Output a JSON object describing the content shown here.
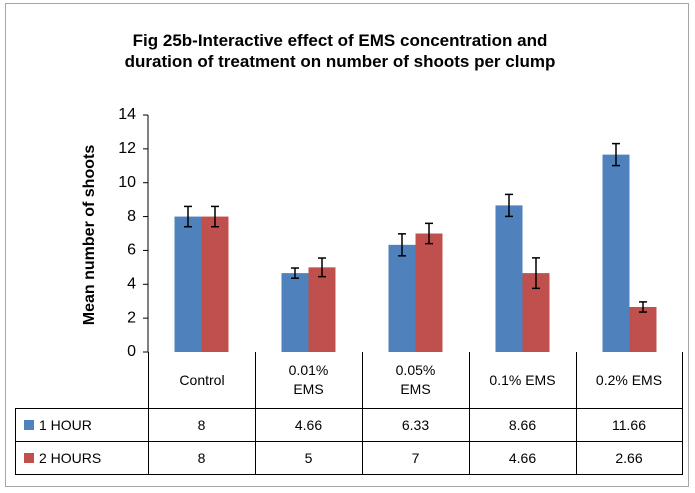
{
  "chart_data": {
    "type": "bar",
    "title": "Fig 25b-Interactive effect of EMS concentration and duration of treatment on number of shoots per clump",
    "ylabel": "Mean number of shoots",
    "categories": [
      "Control",
      "0.01% EMS",
      "0.05% EMS",
      "0.1% EMS",
      "0.2% EMS"
    ],
    "series": [
      {
        "name": "1 HOUR",
        "color": "#4f81bd",
        "values": [
          8,
          4.66,
          6.33,
          8.66,
          11.66
        ],
        "errors": [
          0.6,
          0.3,
          0.65,
          0.65,
          0.65
        ]
      },
      {
        "name": "2 HOURS",
        "color": "#c0504d",
        "values": [
          8,
          5,
          7,
          4.66,
          2.66
        ],
        "errors": [
          0.6,
          0.55,
          0.6,
          0.9,
          0.3
        ]
      }
    ],
    "ylim": [
      0,
      14
    ],
    "yticks": [
      0,
      2,
      4,
      6,
      8,
      10,
      12,
      14
    ],
    "grid": false,
    "data_table": true
  }
}
